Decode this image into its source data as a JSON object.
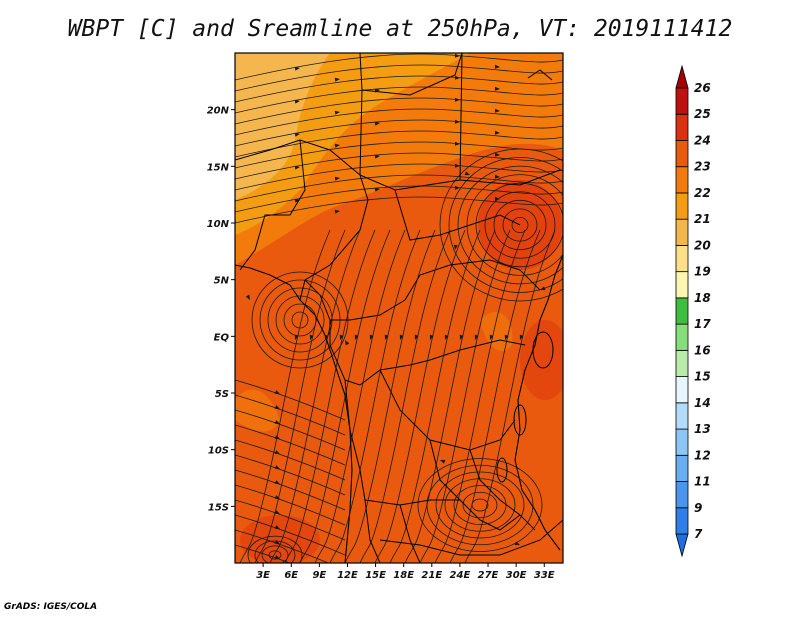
{
  "title": "WBPT [C] and Sreamline at 250hPa, VT: 2019111412",
  "footer": "GrADS: IGES/COLA",
  "map": {
    "lon_labels": [
      "3E",
      "6E",
      "9E",
      "12E",
      "15E",
      "18E",
      "21E",
      "24E",
      "27E",
      "30E",
      "33E"
    ],
    "lon_values": [
      3,
      6,
      9,
      12,
      15,
      18,
      21,
      24,
      27,
      30,
      33
    ],
    "lon_range": [
      0,
      35
    ],
    "lat_labels": [
      "20N",
      "15N",
      "10N",
      "5N",
      "EQ",
      "5S",
      "10S",
      "15S"
    ],
    "lat_values": [
      20,
      15,
      10,
      5,
      0,
      -5,
      -10,
      -15
    ],
    "lat_range": [
      -20,
      25
    ]
  },
  "colorbar": {
    "levels": [
      "7",
      "9",
      "11",
      "12",
      "13",
      "14",
      "15",
      "16",
      "17",
      "18",
      "19",
      "20",
      "21",
      "22",
      "23",
      "24",
      "25",
      "26"
    ],
    "colors": [
      "#1e6ee0",
      "#2f7fe8",
      "#4a96ee",
      "#68aef3",
      "#8cc6f7",
      "#b3dcfa",
      "#e6f6fc",
      "#b9ecaa",
      "#84de7a",
      "#3fbd3f",
      "#fcf6b0",
      "#fbe088",
      "#f6b64e",
      "#f59d12",
      "#f27b0c",
      "#ea5a0e",
      "#dc3010",
      "#c01010",
      "#a40000"
    ]
  },
  "colors": {
    "background": "#ffffff",
    "streamline": "#1a1a1a",
    "boundary": "#000000"
  }
}
